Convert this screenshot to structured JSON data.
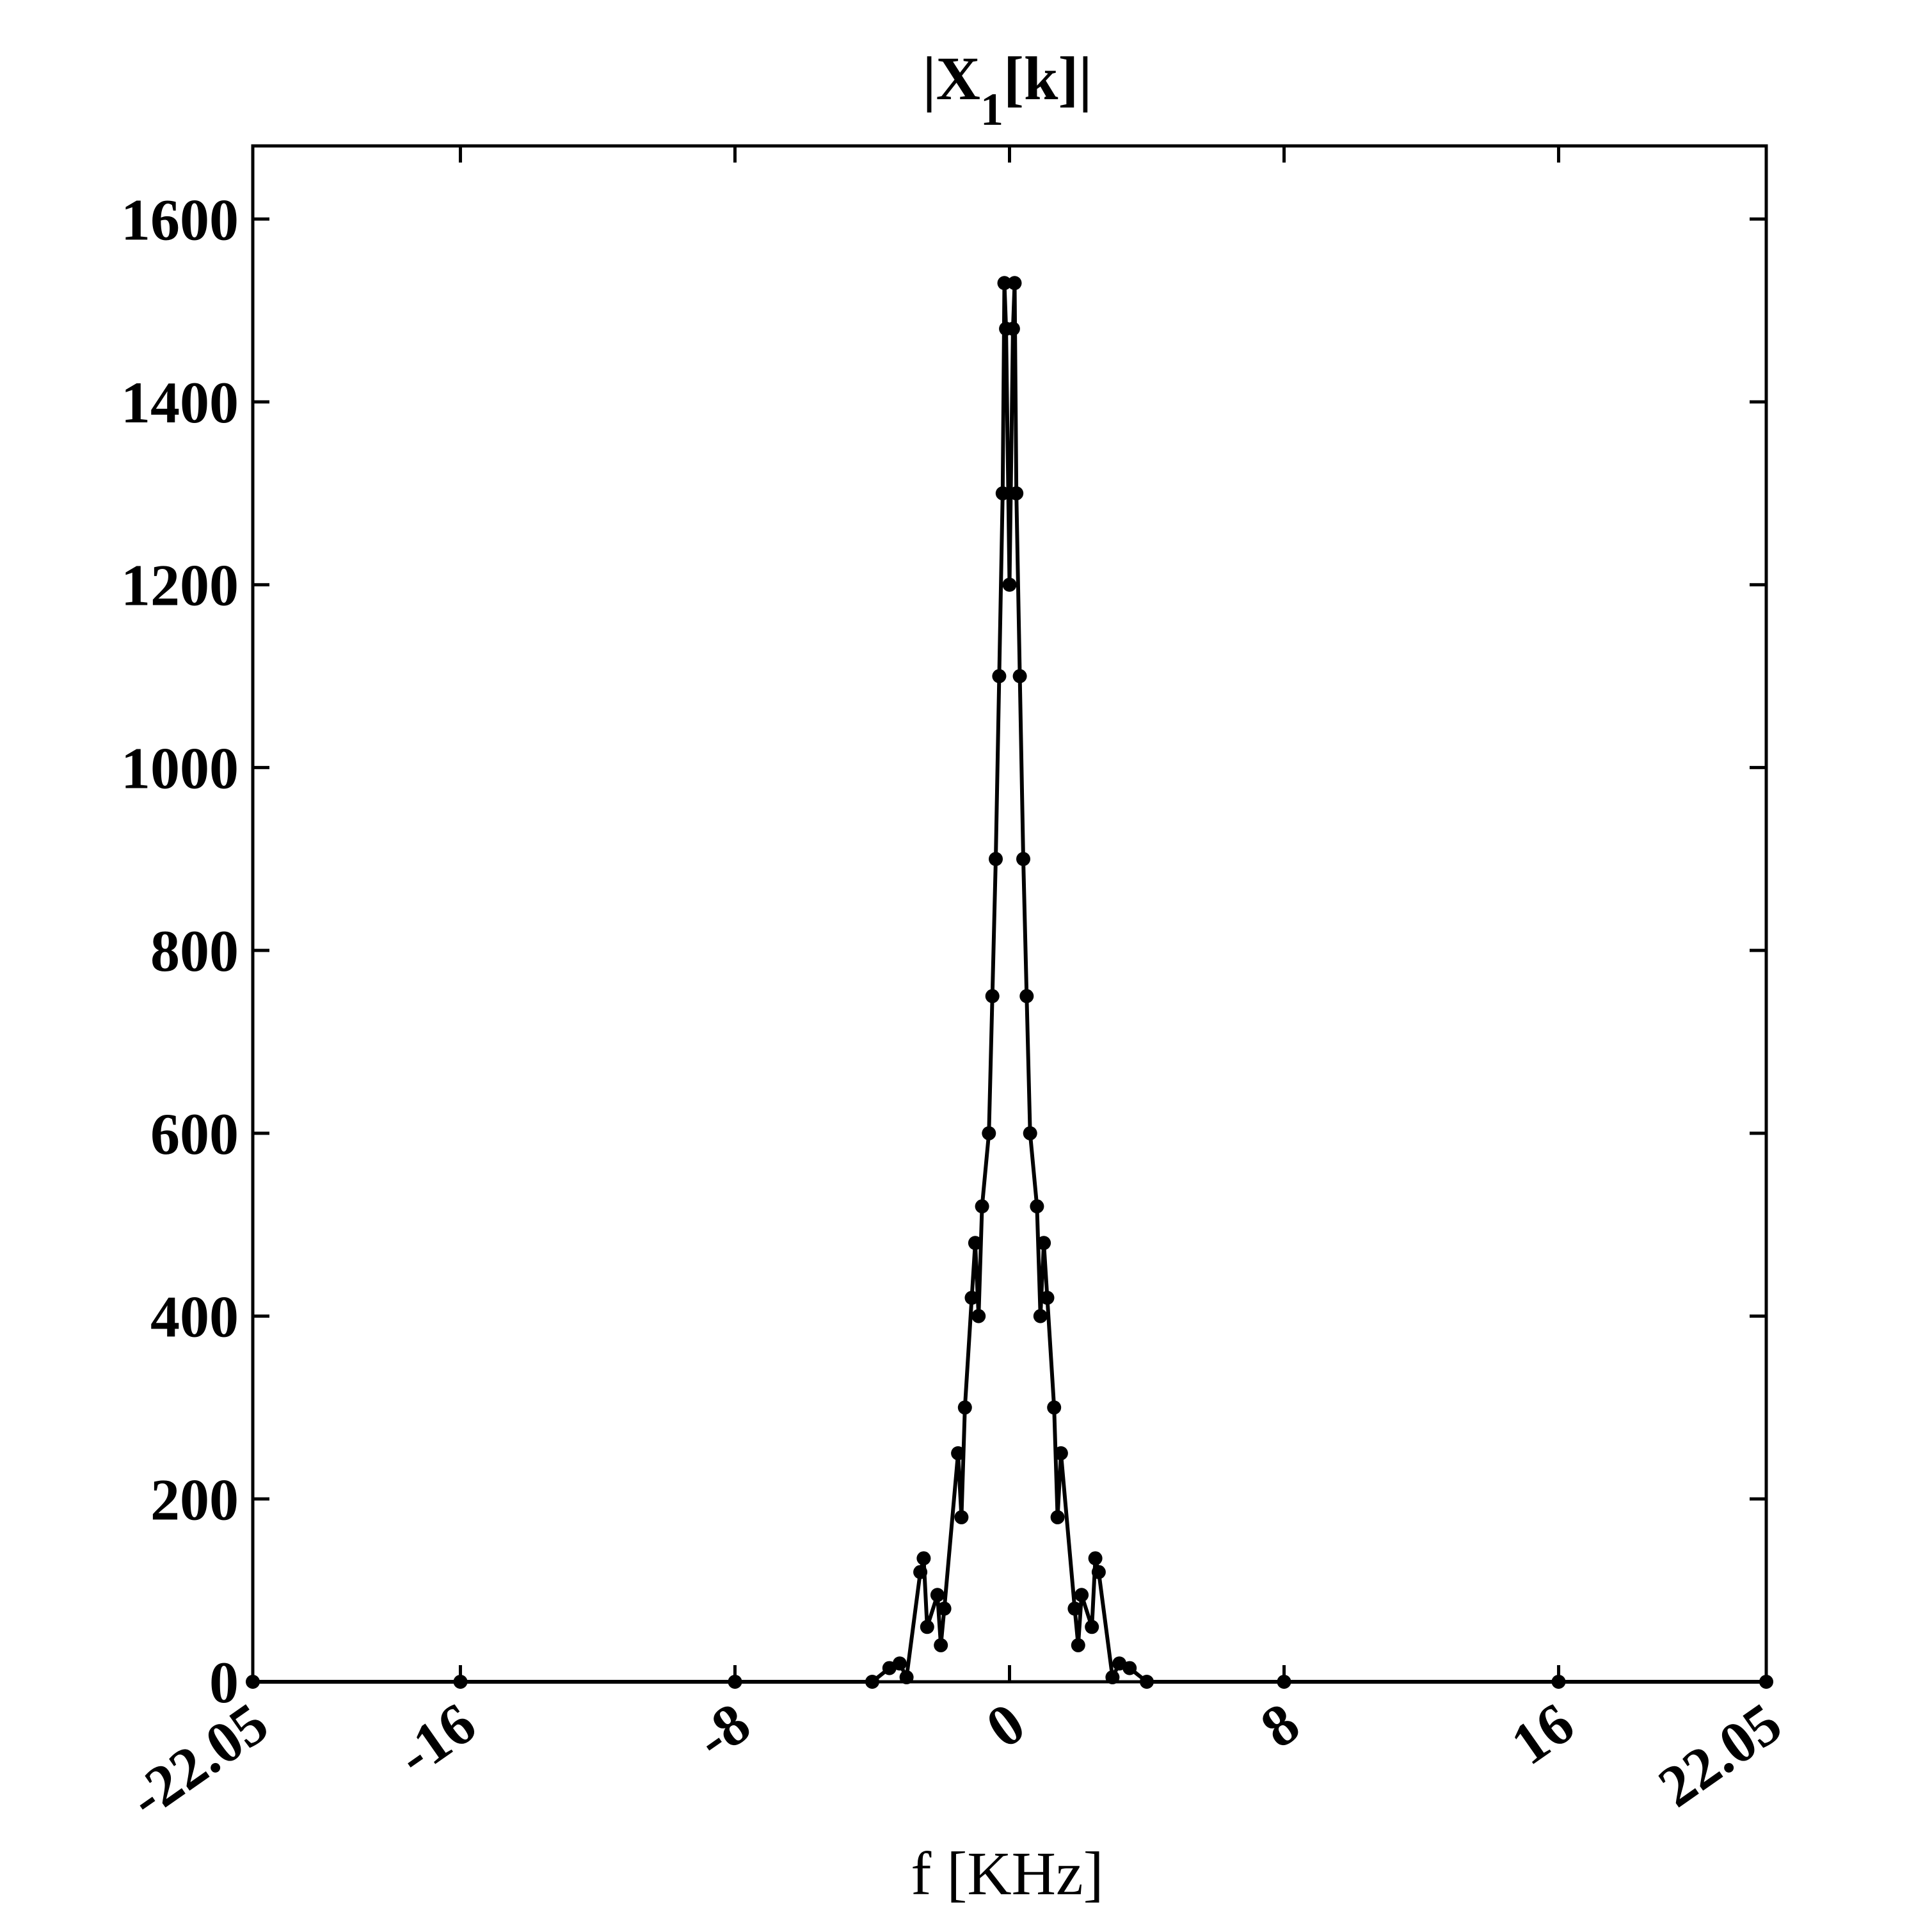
{
  "chart_data": {
    "type": "line",
    "title": "|X1[k]|",
    "title_parts": {
      "prefix": "|X",
      "subscript": "1",
      "suffix": "[k]|"
    },
    "xlabel": "f [KHz]",
    "ylabel": "",
    "xlim": [
      -22.05,
      22.05
    ],
    "ylim": [
      0,
      1680
    ],
    "x_ticks": [
      -22.05,
      -16,
      -8,
      0,
      8,
      16,
      22.05
    ],
    "x_tick_labels": [
      "-22.05",
      "-16",
      "-8",
      "0",
      "8",
      "16",
      "22.05"
    ],
    "y_ticks": [
      0,
      200,
      400,
      600,
      800,
      1000,
      1200,
      1400,
      1600
    ],
    "y_tick_labels": [
      "0",
      "200",
      "400",
      "600",
      "800",
      "1000",
      "1200",
      "1400",
      "1600"
    ],
    "grid": false,
    "legend": "none",
    "line_color": "#000000",
    "marker": "filled-circle",
    "series": [
      {
        "x": [
          -22.05,
          -16,
          -8,
          -4.0,
          -3.5,
          -3.2,
          -3.0,
          -2.6,
          -2.5,
          -2.4,
          -2.1,
          -2.0,
          -1.9,
          -1.5,
          -1.4,
          -1.3,
          -1.1,
          -1.0,
          -0.9,
          -0.8,
          -0.6,
          -0.5,
          -0.4,
          -0.3,
          -0.2,
          -0.15,
          -0.1,
          0,
          0.1,
          0.15,
          0.2,
          0.3,
          0.4,
          0.5,
          0.6,
          0.8,
          0.9,
          1.0,
          1.1,
          1.3,
          1.4,
          1.5,
          1.9,
          2.0,
          2.1,
          2.4,
          2.5,
          2.6,
          3.0,
          3.2,
          3.5,
          4.0,
          8,
          16,
          22.05
        ],
        "y": [
          0,
          0,
          0,
          0,
          15,
          20,
          5,
          120,
          135,
          60,
          95,
          40,
          80,
          250,
          180,
          300,
          420,
          480,
          400,
          520,
          600,
          750,
          900,
          1100,
          1300,
          1530,
          1480,
          1200,
          1480,
          1530,
          1300,
          1100,
          900,
          750,
          600,
          520,
          400,
          480,
          420,
          300,
          180,
          250,
          80,
          40,
          95,
          60,
          135,
          120,
          5,
          20,
          15,
          0,
          0,
          0,
          0
        ]
      }
    ]
  }
}
